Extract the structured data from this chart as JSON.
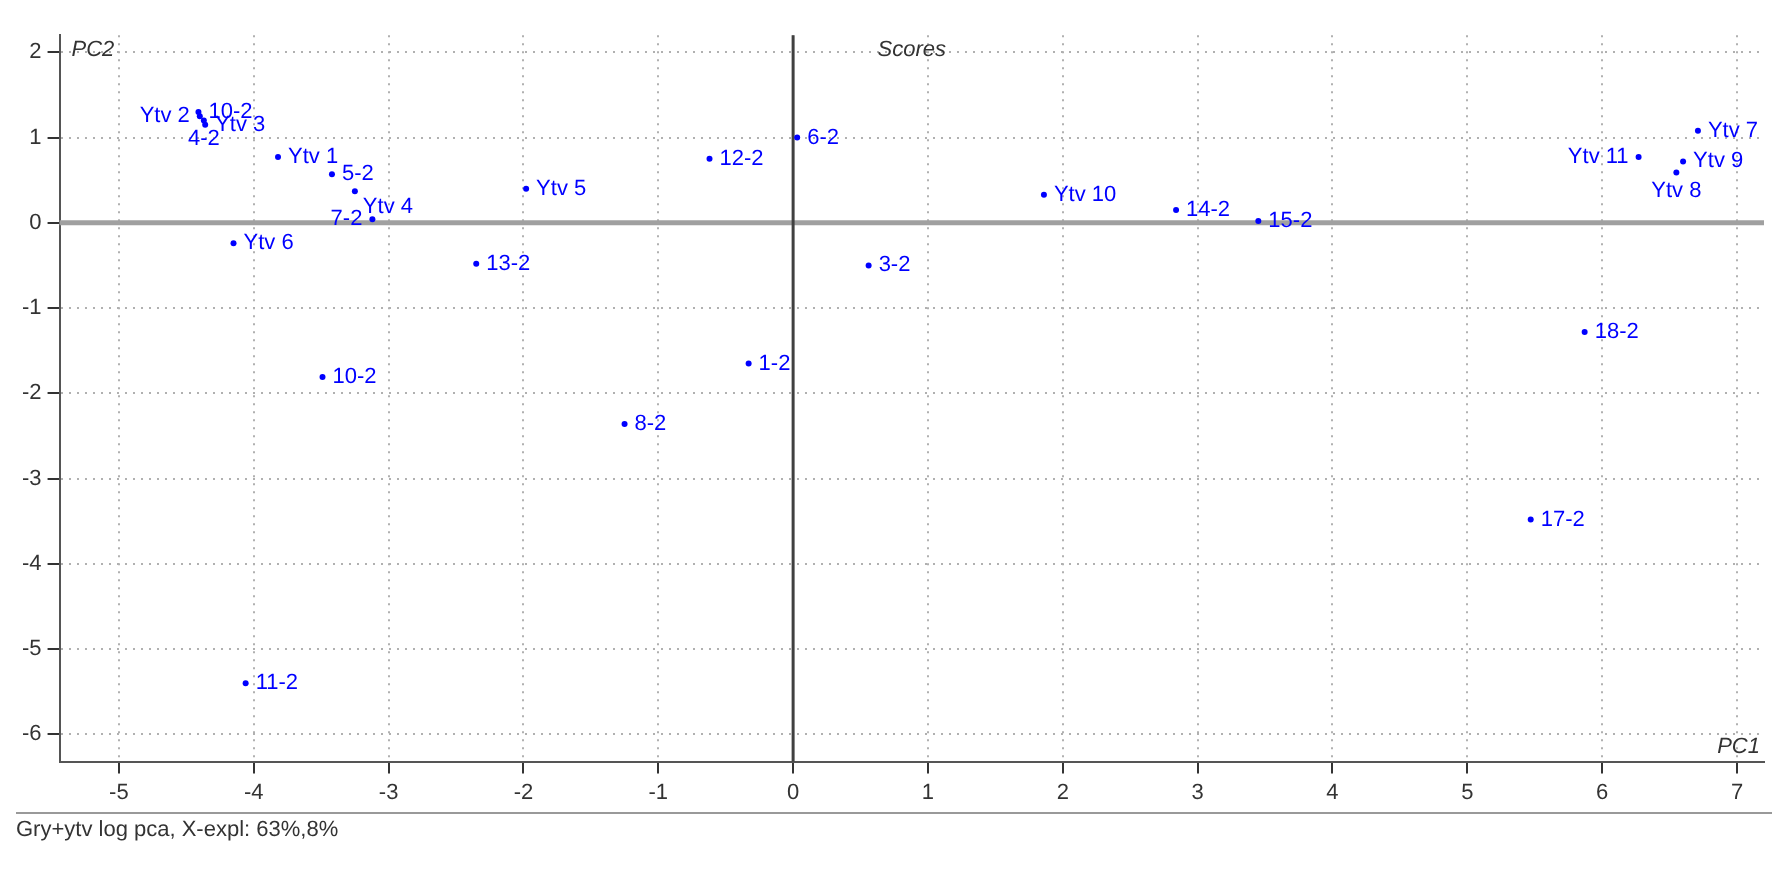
{
  "chart_data": {
    "type": "scatter",
    "title": "Scores",
    "xlabel": "PC1",
    "ylabel": "PC2",
    "xlim": [
      -5.44,
      7.2
    ],
    "ylim": [
      -6.32,
      2.2
    ],
    "xticks": [
      -5,
      -4,
      -3,
      -2,
      -1,
      0,
      1,
      2,
      3,
      4,
      5,
      6,
      7
    ],
    "yticks": [
      -6,
      -5,
      -4,
      -3,
      -2,
      -1,
      0,
      1,
      2
    ],
    "grid": true,
    "marker": "circle",
    "ref_lines": [
      {
        "axis": "y",
        "value": 0,
        "color": "#a0a0a0"
      },
      {
        "axis": "x",
        "value": 0,
        "color": "#404040"
      }
    ],
    "annotations": [
      "Gry+ytv log pca, X-expl: 63%,8%"
    ],
    "series": [
      {
        "name": "10-2",
        "color": "#0000ff",
        "x": [
          -4.41
        ],
        "values": [
          1.3
        ]
      },
      {
        "name": "Ytv 2",
        "color": "#0000ff",
        "x": [
          -4.4
        ],
        "values": [
          1.25
        ]
      },
      {
        "name": "4-2",
        "color": "#0000ff",
        "x": [
          -4.37
        ],
        "values": [
          1.2
        ]
      },
      {
        "name": "Ytv 3",
        "color": "#0000ff",
        "x": [
          -4.36
        ],
        "values": [
          1.15
        ]
      },
      {
        "name": "Ytv 1",
        "color": "#0000ff",
        "x": [
          -3.82
        ],
        "values": [
          0.77
        ]
      },
      {
        "name": "5-2",
        "color": "#0000ff",
        "x": [
          -3.42
        ],
        "values": [
          0.57
        ]
      },
      {
        "name": "Ytv 4",
        "color": "#0000ff",
        "x": [
          -3.25
        ],
        "values": [
          0.37
        ]
      },
      {
        "name": "7-2",
        "color": "#0000ff",
        "x": [
          -3.12
        ],
        "values": [
          0.04
        ]
      },
      {
        "name": "Ytv 6",
        "color": "#0000ff",
        "x": [
          -4.15
        ],
        "values": [
          -0.24
        ]
      },
      {
        "name": "13-2",
        "color": "#0000ff",
        "x": [
          -2.35
        ],
        "values": [
          -0.48
        ]
      },
      {
        "name": "Ytv 5",
        "color": "#0000ff",
        "x": [
          -1.98
        ],
        "values": [
          0.4
        ]
      },
      {
        "name": "10-2",
        "color": "#0000ff",
        "x": [
          -3.49
        ],
        "values": [
          -1.81
        ]
      },
      {
        "name": "11-2",
        "color": "#0000ff",
        "x": [
          -4.06
        ],
        "values": [
          -5.4
        ]
      },
      {
        "name": "12-2",
        "color": "#0000ff",
        "x": [
          -0.62
        ],
        "values": [
          0.75
        ]
      },
      {
        "name": "6-2",
        "color": "#0000ff",
        "x": [
          0.03
        ],
        "values": [
          1.0
        ]
      },
      {
        "name": "3-2",
        "color": "#0000ff",
        "x": [
          0.56
        ],
        "values": [
          -0.5
        ]
      },
      {
        "name": "1-2",
        "color": "#0000ff",
        "x": [
          -0.33
        ],
        "values": [
          -1.65
        ]
      },
      {
        "name": "8-2",
        "color": "#0000ff",
        "x": [
          -1.25
        ],
        "values": [
          -2.36
        ]
      },
      {
        "name": "Ytv 10",
        "color": "#0000ff",
        "x": [
          1.86
        ],
        "values": [
          0.33
        ]
      },
      {
        "name": "14-2",
        "color": "#0000ff",
        "x": [
          2.84
        ],
        "values": [
          0.15
        ]
      },
      {
        "name": "15-2",
        "color": "#0000ff",
        "x": [
          3.45
        ],
        "values": [
          0.02
        ]
      },
      {
        "name": "18-2",
        "color": "#0000ff",
        "x": [
          5.87
        ],
        "values": [
          -1.28
        ]
      },
      {
        "name": "17-2",
        "color": "#0000ff",
        "x": [
          5.47
        ],
        "values": [
          -3.48
        ]
      },
      {
        "name": "Ytv 7",
        "color": "#0000ff",
        "x": [
          6.71
        ],
        "values": [
          1.08
        ]
      },
      {
        "name": "Ytv 11",
        "color": "#0000ff",
        "x": [
          6.27
        ],
        "values": [
          0.77
        ]
      },
      {
        "name": "Ytv 9",
        "color": "#0000ff",
        "x": [
          6.6
        ],
        "values": [
          0.72
        ]
      },
      {
        "name": "Ytv 8",
        "color": "#0000ff",
        "x": [
          6.55
        ],
        "values": [
          0.59
        ]
      }
    ]
  }
}
